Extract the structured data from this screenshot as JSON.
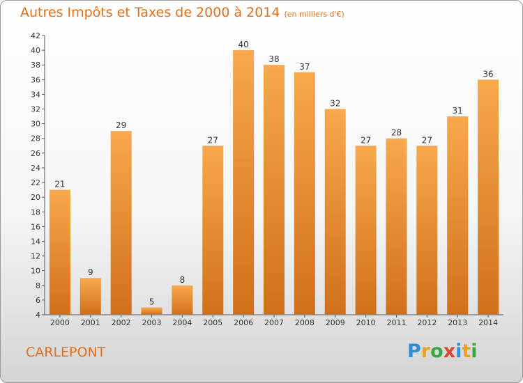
{
  "title": "Autres Impôts et Taxes de 2000 à 2014",
  "unit": "(en milliers d'€)",
  "commune": "CARLEPONT",
  "logo": {
    "text": "Proxiti",
    "letters": [
      {
        "ch": "P",
        "color": "#2e8fd6"
      },
      {
        "ch": "r",
        "color": "#e8a12a"
      },
      {
        "ch": "o",
        "color": "#39a845"
      },
      {
        "ch": "x",
        "color": "#e0442b"
      },
      {
        "ch": "i",
        "color": "#2e8fd6"
      },
      {
        "ch": "t",
        "color": "#e8a12a"
      },
      {
        "ch": "i",
        "color": "#39a845"
      }
    ]
  },
  "colors": {
    "accent": "#e0701c",
    "bar_top": "#f8a84e",
    "bar_bottom": "#d0701a"
  },
  "chart_data": {
    "type": "bar",
    "title": "Autres Impôts et Taxes de 2000 à 2014",
    "subtitle": "(en milliers d'€)",
    "categories": [
      "2000",
      "2001",
      "2002",
      "2003",
      "2004",
      "2005",
      "2006",
      "2007",
      "2008",
      "2009",
      "2010",
      "2011",
      "2012",
      "2013",
      "2014"
    ],
    "values": [
      21,
      9,
      29,
      5,
      8,
      27,
      40,
      38,
      37,
      32,
      27,
      28,
      27,
      31,
      36
    ],
    "ylim": [
      4,
      42
    ],
    "yticks": [
      4,
      6,
      8,
      10,
      12,
      14,
      16,
      18,
      20,
      22,
      24,
      26,
      28,
      30,
      32,
      34,
      36,
      38,
      40,
      42
    ],
    "grid": false,
    "legend": "none"
  }
}
